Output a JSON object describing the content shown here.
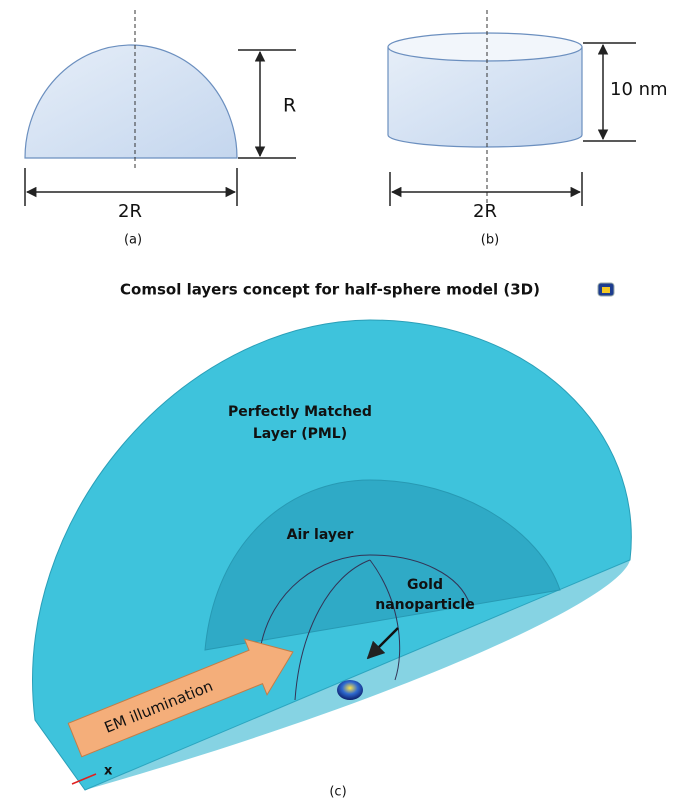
{
  "panel_a": {
    "height_label": "R",
    "width_label": "2R",
    "caption": "(a)"
  },
  "panel_b": {
    "height_label": "10 nm",
    "width_label": "2R",
    "caption": "(b)"
  },
  "panel_c": {
    "title": "Comsol layers concept for half-sphere model (3D)",
    "pml_label": [
      "Perfectly Matched",
      "Layer (PML)"
    ],
    "air_label": "Air layer",
    "gold_label": [
      "Gold",
      "nanoparticle"
    ],
    "illumination_label": "EM illumination",
    "axis_label": "x",
    "caption": "(c)"
  }
}
